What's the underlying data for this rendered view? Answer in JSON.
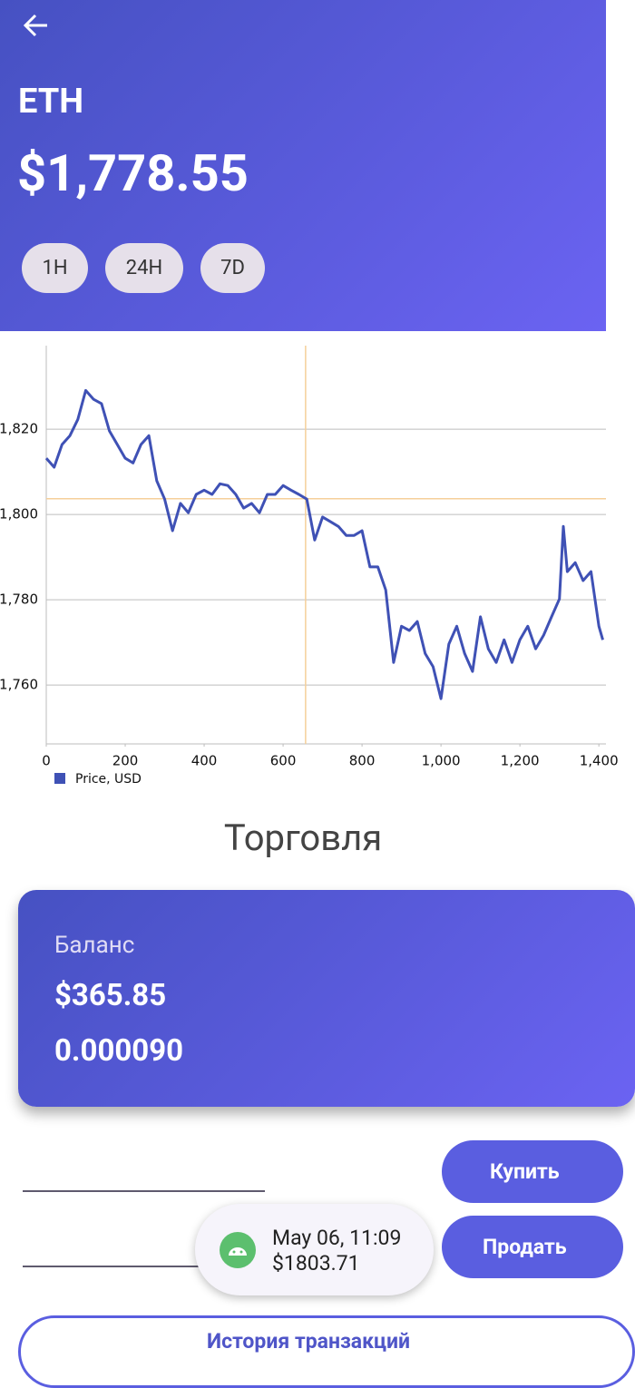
{
  "header": {
    "title": "ETH",
    "price": "$1,778.55",
    "ranges": [
      "1H",
      "24H",
      "7D"
    ]
  },
  "chart_data": {
    "type": "line",
    "x": [
      0,
      20,
      40,
      60,
      80,
      100,
      120,
      140,
      160,
      180,
      200,
      220,
      240,
      260,
      280,
      300,
      320,
      340,
      360,
      380,
      400,
      420,
      440,
      460,
      480,
      500,
      520,
      540,
      560,
      580,
      600,
      620,
      640,
      660,
      680,
      700,
      720,
      740,
      760,
      780,
      800,
      820,
      840,
      860,
      880,
      900,
      920,
      940,
      960,
      980,
      1000,
      1020,
      1040,
      1060,
      1080,
      1100,
      1120,
      1140,
      1160,
      1180,
      1200,
      1220,
      1240,
      1260,
      1280,
      1300,
      1310,
      1320,
      1340,
      1360,
      1380,
      1400,
      1410
    ],
    "series": [
      {
        "name": "Price, USD",
        "color": "#3f51b5",
        "values": [
          1813.2,
          1811.1,
          1816.4,
          1818.5,
          1822.3,
          1829.1,
          1827.0,
          1826.0,
          1819.6,
          1816.4,
          1813.2,
          1812.1,
          1816.4,
          1818.5,
          1807.9,
          1803.6,
          1796.2,
          1802.6,
          1800.4,
          1804.7,
          1805.7,
          1804.7,
          1807.2,
          1806.8,
          1804.7,
          1801.5,
          1802.6,
          1800.4,
          1804.7,
          1804.7,
          1806.8,
          1805.7,
          1804.7,
          1803.6,
          1794.0,
          1799.4,
          1798.3,
          1797.2,
          1795.1,
          1795.1,
          1796.2,
          1787.7,
          1787.7,
          1782.3,
          1765.3,
          1773.8,
          1772.8,
          1774.9,
          1767.4,
          1764.3,
          1756.8,
          1769.6,
          1773.8,
          1767.4,
          1763.2,
          1776.0,
          1768.5,
          1765.3,
          1770.6,
          1765.3,
          1770.6,
          1773.8,
          1768.5,
          1771.7,
          1776.0,
          1780.2,
          1797.2,
          1786.6,
          1788.7,
          1784.5,
          1786.6,
          1773.8,
          1770.6
        ]
      }
    ],
    "xlim": [
      0,
      1418
    ],
    "ylim": [
      1746.2,
      1839.6
    ],
    "xticks": [
      0,
      200,
      400,
      600,
      800,
      {
        "value": 1000,
        "label": "1,000"
      },
      {
        "value": 1200,
        "label": "1,200"
      },
      {
        "value": 1400,
        "label": "1,400"
      }
    ],
    "yticks": [
      {
        "value": 1760,
        "label": "1,760"
      },
      {
        "value": 1780,
        "label": "1,780"
      },
      {
        "value": 1800,
        "label": "1,800"
      },
      {
        "value": 1820,
        "label": "1,820"
      }
    ],
    "grid": true,
    "crosshair": {
      "x": 657,
      "y": 1803.71,
      "color": "#f5cf9a"
    }
  },
  "trading": {
    "title": "Торговля",
    "balance_label": "Баланс",
    "balance_usd": "$365.85",
    "balance_eth": "0.000090",
    "buy": "Купить",
    "sell": "Продать",
    "history": "История транзакций"
  },
  "tooltip": {
    "date": "May 06, 11:09",
    "price": "$1803.71"
  }
}
